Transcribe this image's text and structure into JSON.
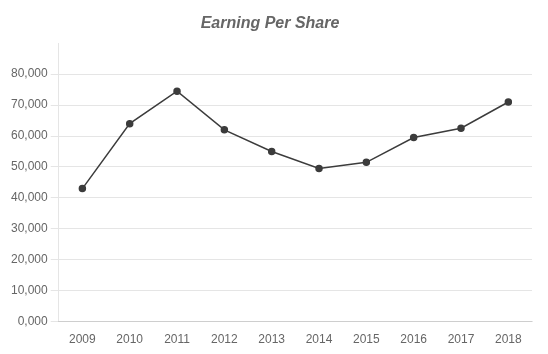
{
  "chart_data": {
    "type": "line",
    "title": "Earning Per Share",
    "x": [
      2009,
      2010,
      2011,
      2012,
      2013,
      2014,
      2015,
      2016,
      2017,
      2018
    ],
    "values": [
      43000,
      64000,
      74500,
      62000,
      55000,
      49500,
      51500,
      59500,
      62500,
      71000
    ],
    "color": "#3c3c3c",
    "marker": "circle",
    "xlim": [
      2008.5,
      2018.5
    ],
    "xticks": [
      2009,
      2010,
      2011,
      2012,
      2013,
      2014,
      2015,
      2016,
      2017,
      2018
    ],
    "ylim": [
      0,
      90000
    ],
    "yticks": [
      {
        "value": 0,
        "label": "0,000"
      },
      {
        "value": 10000,
        "label": "10,000"
      },
      {
        "value": 20000,
        "label": "20,000"
      },
      {
        "value": 30000,
        "label": "30,000"
      },
      {
        "value": 40000,
        "label": "40,000"
      },
      {
        "value": 50000,
        "label": "50,000"
      },
      {
        "value": 60000,
        "label": "60,000"
      },
      {
        "value": 70000,
        "label": "70,000"
      },
      {
        "value": 80000,
        "label": "80,000"
      }
    ],
    "grid": true
  }
}
